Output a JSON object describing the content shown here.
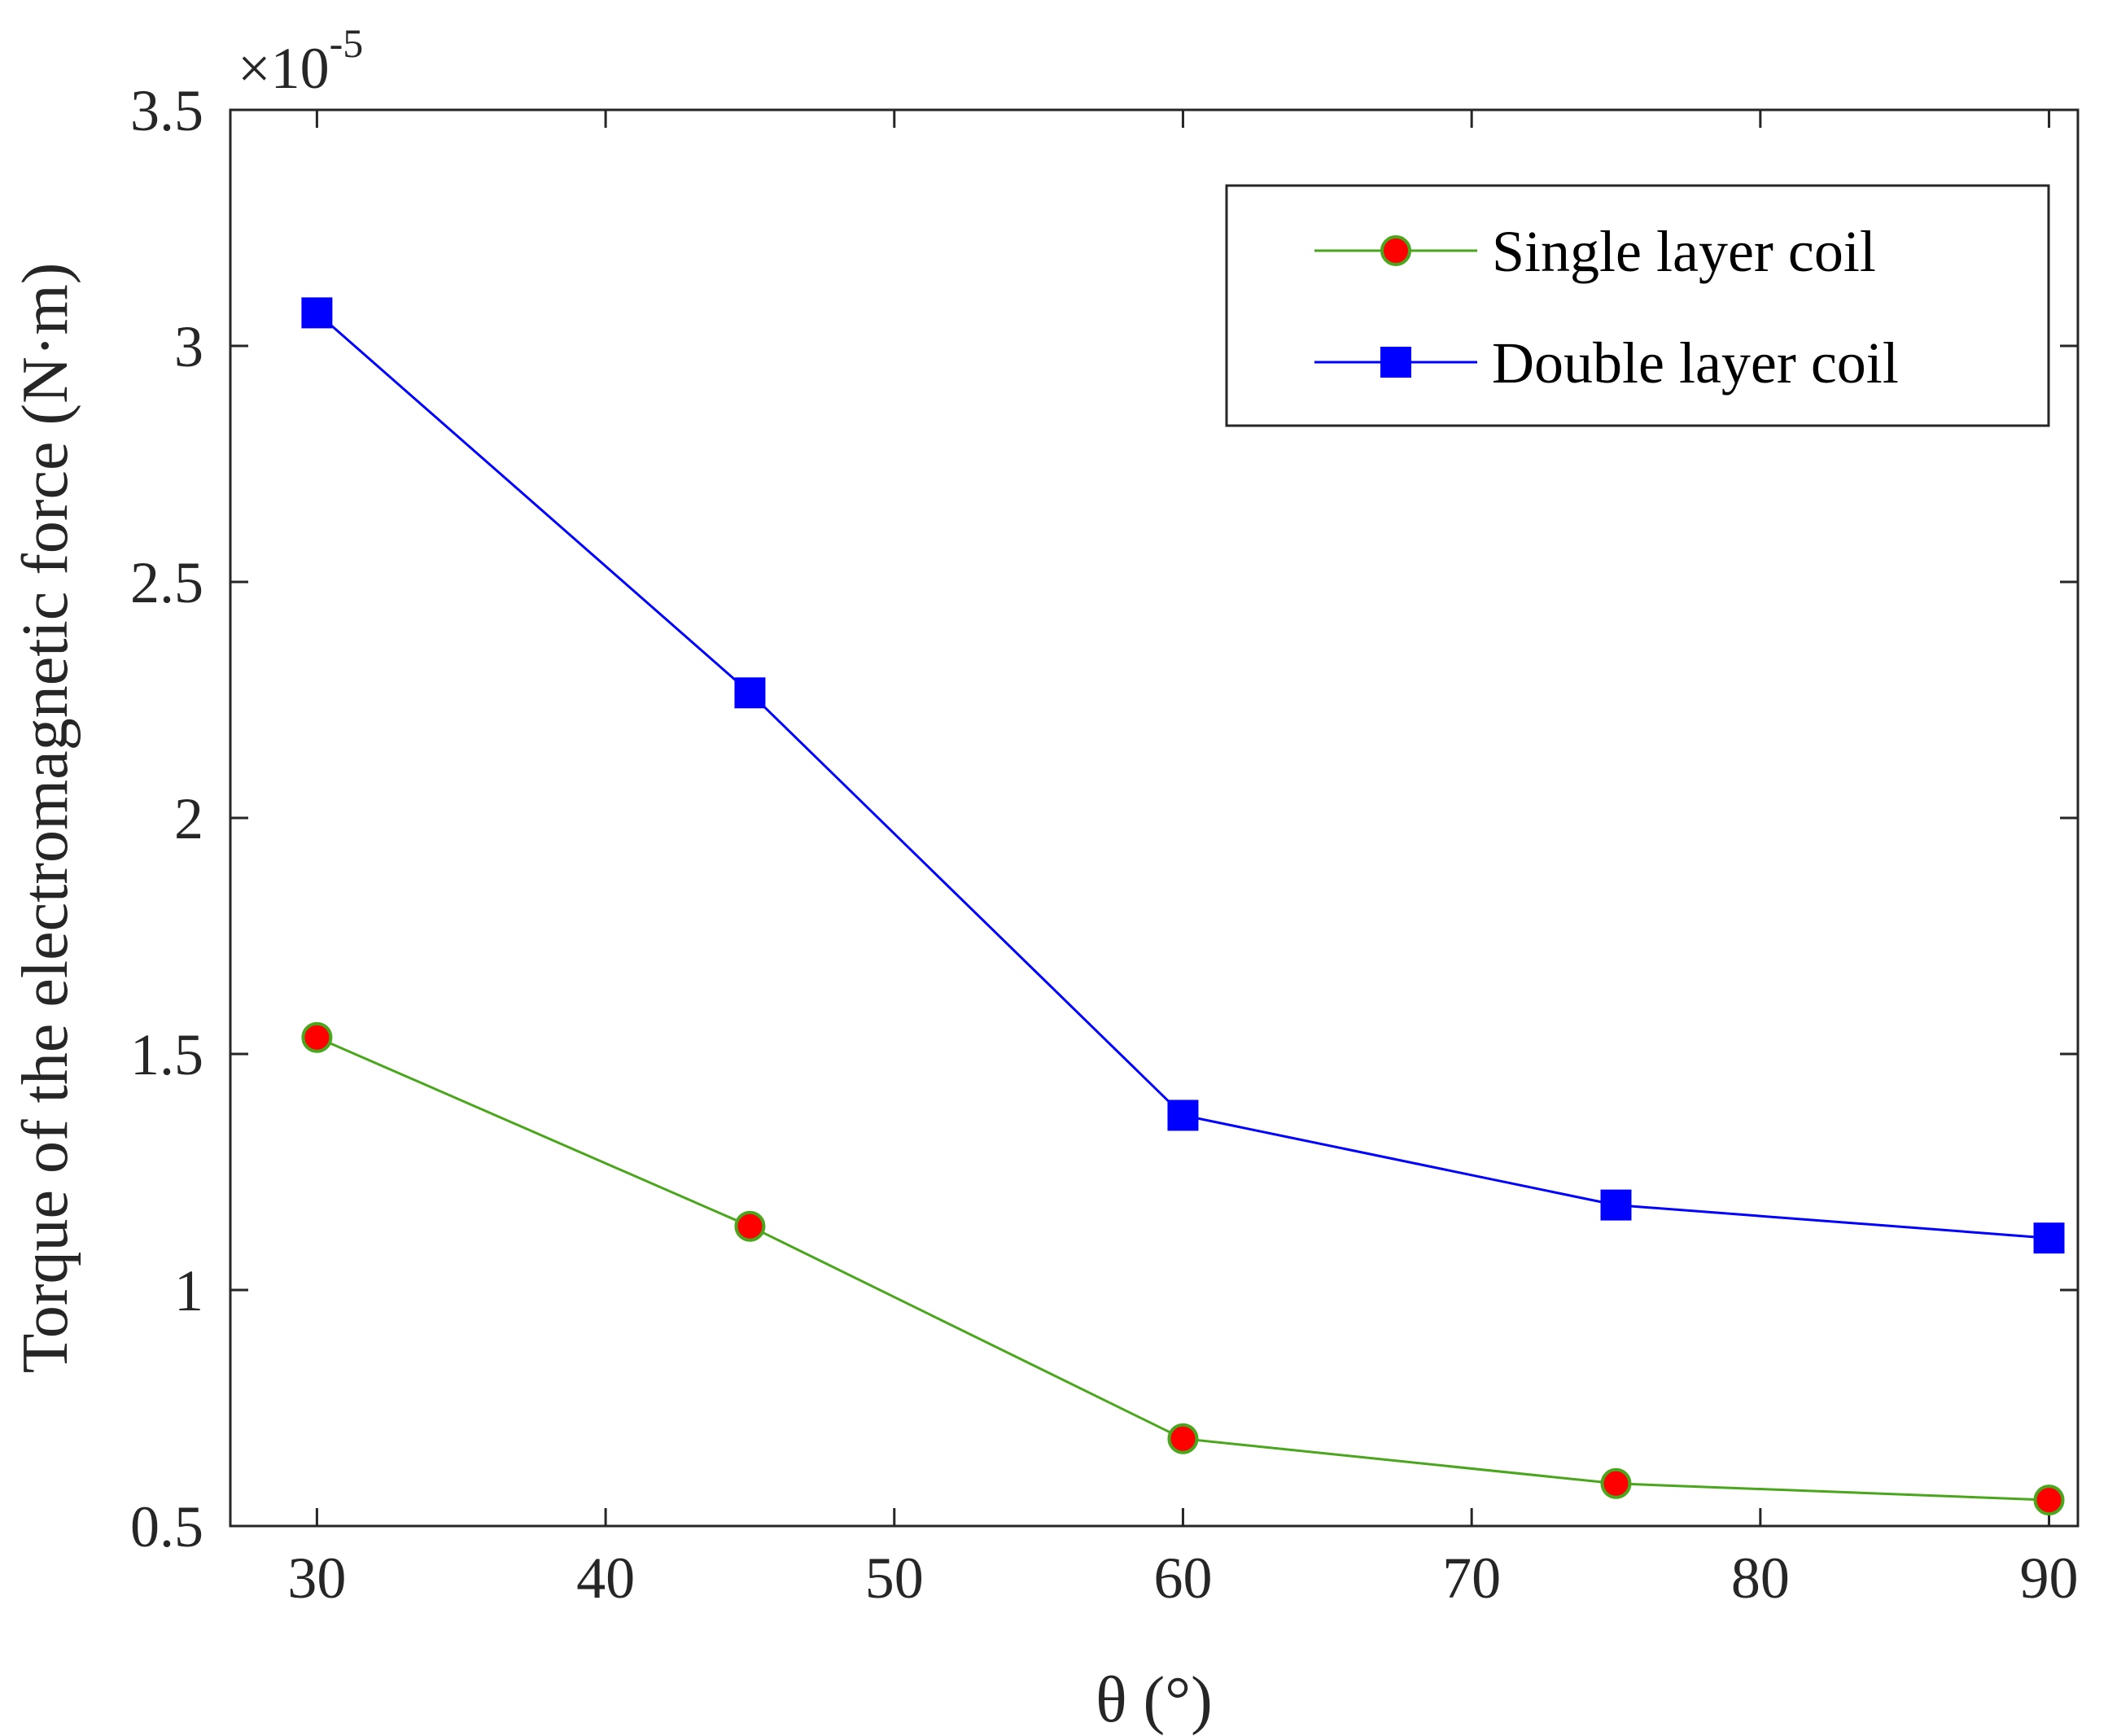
{
  "chart_data": {
    "type": "line",
    "title": "",
    "xlabel": "θ (°)",
    "ylabel": "Torque of the electromagnetic force (N·m)",
    "y_exponent": {
      "base": "×10",
      "power": "-5"
    },
    "xlim": [
      27,
      91
    ],
    "ylim": [
      0.5,
      3.5
    ],
    "xticks": [
      30,
      40,
      50,
      60,
      70,
      80,
      90
    ],
    "xtick_labels": [
      "30",
      "40",
      "50",
      "60",
      "70",
      "80",
      "90"
    ],
    "yticks": [
      0.5,
      1,
      1.5,
      2,
      2.5,
      3,
      3.5
    ],
    "ytick_labels": [
      "0.5",
      "1",
      "1.5",
      "2",
      "2.5",
      "3",
      "3.5"
    ],
    "grid": false,
    "legend_position": "top-right",
    "x": [
      30,
      45,
      60,
      75,
      90
    ],
    "series": [
      {
        "name": "Single layer coil",
        "values": [
          1.535,
          1.135,
          0.685,
          0.59,
          0.555
        ],
        "line_color": "#4aa61c",
        "marker": "circle",
        "marker_fill": "#ff0000",
        "marker_edge": "#4aa61c"
      },
      {
        "name": "Double layer coil",
        "values": [
          3.07,
          2.265,
          1.37,
          1.18,
          1.11
        ],
        "line_color": "#0000ff",
        "marker": "square",
        "marker_fill": "#0000ff",
        "marker_edge": "#0000ff"
      }
    ]
  }
}
